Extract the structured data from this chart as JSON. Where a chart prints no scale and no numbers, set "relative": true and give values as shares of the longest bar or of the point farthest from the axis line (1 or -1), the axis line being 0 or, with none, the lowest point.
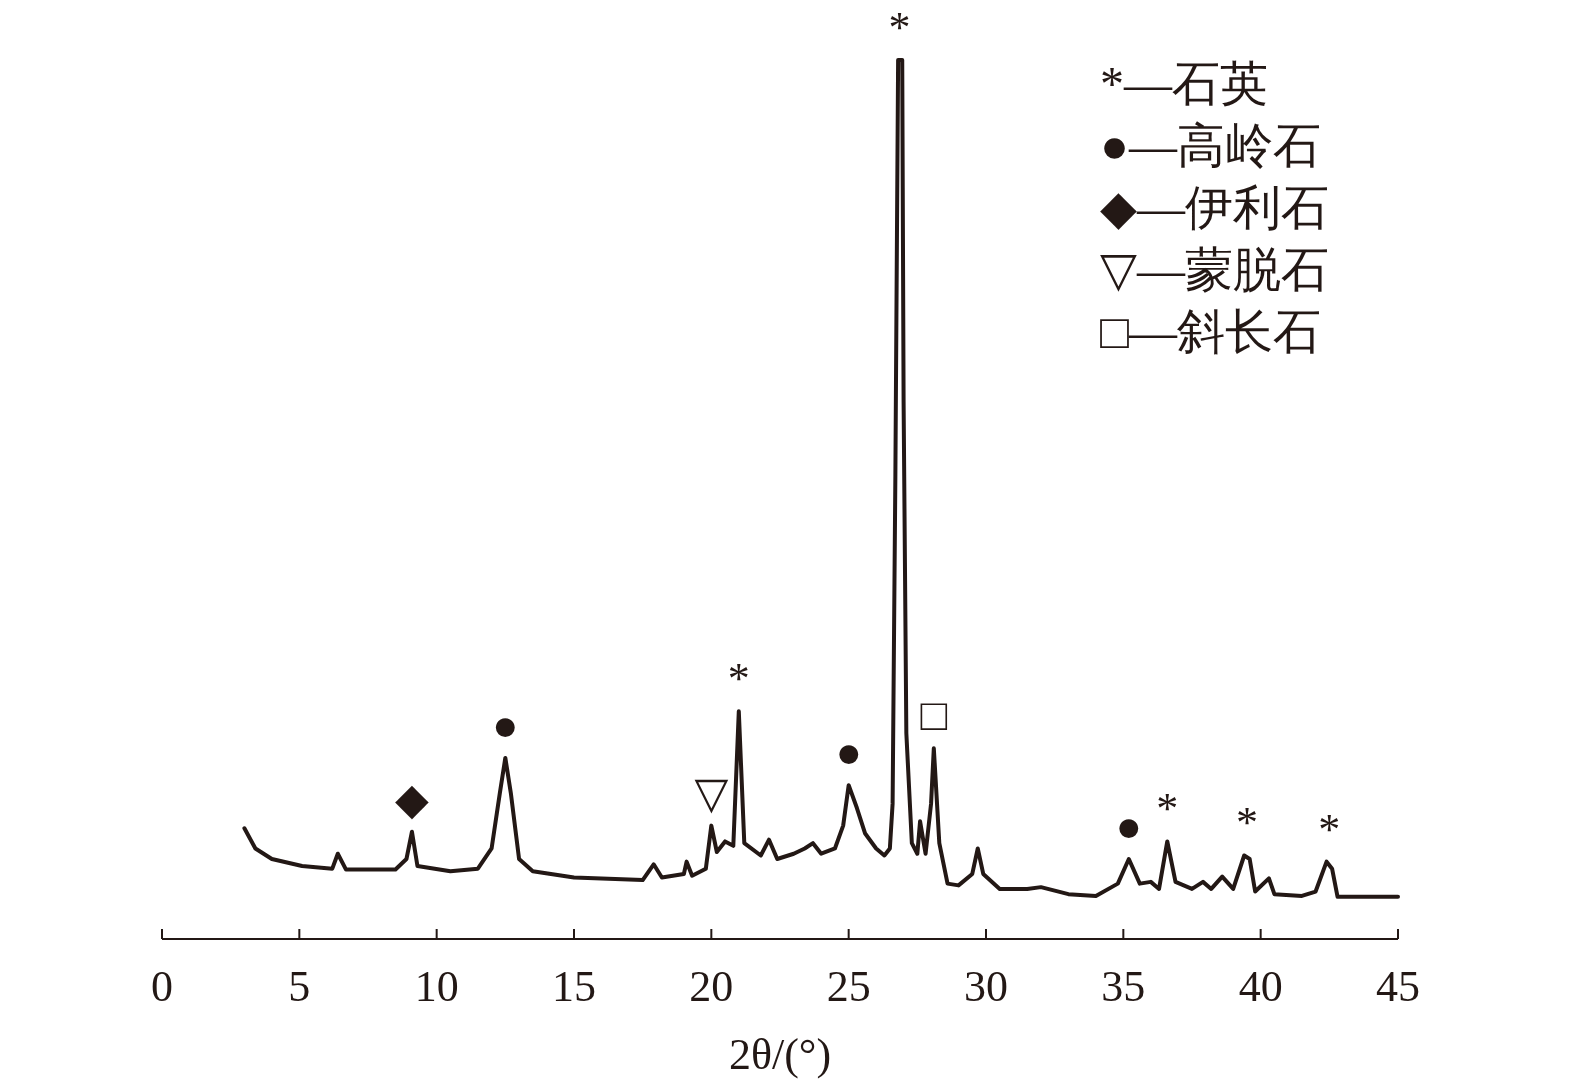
{
  "chart_data": {
    "type": "line",
    "relative": true,
    "xlabel": "2θ/(°)",
    "xlim": [
      0,
      45
    ],
    "xticks": [
      0,
      5,
      10,
      15,
      20,
      25,
      30,
      35,
      40,
      45
    ],
    "grid": false,
    "series": [
      {
        "color": "#231815",
        "x": [
          3.0,
          3.4,
          4.0,
          5.1,
          6.2,
          6.4,
          6.7,
          8.5,
          8.9,
          9.1,
          9.3,
          10.5,
          11.5,
          12.0,
          12.3,
          12.5,
          12.7,
          13.0,
          13.5,
          15.0,
          17.5,
          17.9,
          18.2,
          19.0,
          19.1,
          19.3,
          19.8,
          20.0,
          20.2,
          20.5,
          20.8,
          21.0,
          21.2,
          21.8,
          22.1,
          22.4,
          23.0,
          23.4,
          23.7,
          24.0,
          24.5,
          24.8,
          25.0,
          25.3,
          25.6,
          26.0,
          26.3,
          26.5,
          26.6,
          26.7,
          26.8,
          26.95,
          27.0,
          27.1,
          27.3,
          27.5,
          27.6,
          27.8,
          28.0,
          28.1,
          28.3,
          28.6,
          29.0,
          29.5,
          29.7,
          29.9,
          30.5,
          31.5,
          32.0,
          33.0,
          34.0,
          34.8,
          35.2,
          35.6,
          36.0,
          36.3,
          36.6,
          36.9,
          37.5,
          37.9,
          38.2,
          38.6,
          39.0,
          39.4,
          39.6,
          39.8,
          40.3,
          40.5,
          41.5,
          42.0,
          42.4,
          42.6,
          42.8,
          44.0,
          45.0
        ],
        "values": [
          0.126,
          0.103,
          0.091,
          0.083,
          0.08,
          0.097,
          0.079,
          0.079,
          0.091,
          0.122,
          0.083,
          0.077,
          0.08,
          0.103,
          0.166,
          0.206,
          0.166,
          0.091,
          0.077,
          0.07,
          0.067,
          0.085,
          0.07,
          0.074,
          0.088,
          0.072,
          0.08,
          0.129,
          0.099,
          0.111,
          0.106,
          0.259,
          0.109,
          0.095,
          0.113,
          0.091,
          0.097,
          0.103,
          0.109,
          0.097,
          0.103,
          0.129,
          0.175,
          0.149,
          0.12,
          0.103,
          0.095,
          0.103,
          0.154,
          0.526,
          1.0,
          1.0,
          0.611,
          0.234,
          0.109,
          0.097,
          0.134,
          0.097,
          0.154,
          0.217,
          0.109,
          0.063,
          0.061,
          0.074,
          0.103,
          0.074,
          0.057,
          0.057,
          0.059,
          0.051,
          0.049,
          0.063,
          0.091,
          0.063,
          0.065,
          0.057,
          0.111,
          0.065,
          0.057,
          0.065,
          0.057,
          0.071,
          0.057,
          0.095,
          0.091,
          0.054,
          0.069,
          0.051,
          0.049,
          0.054,
          0.088,
          0.08,
          0.048,
          0.048,
          0.048
        ]
      }
    ],
    "annotations": [
      {
        "text": "◆",
        "x": 9.1,
        "y": 0.122
      },
      {
        "text": "●",
        "x": 12.5,
        "y": 0.206
      },
      {
        "text": "▽",
        "x": 20.0,
        "y": 0.129
      },
      {
        "text": "*",
        "x": 21.0,
        "y": 0.259
      },
      {
        "text": "●",
        "x": 25.0,
        "y": 0.175
      },
      {
        "text": "*",
        "x": 26.85,
        "y": 1.0
      },
      {
        "text": "□",
        "x": 28.1,
        "y": 0.217
      },
      {
        "text": "●",
        "x": 35.2,
        "y": 0.091
      },
      {
        "text": "*",
        "x": 36.6,
        "y": 0.111
      },
      {
        "text": "*",
        "x": 39.5,
        "y": 0.095
      },
      {
        "text": "*",
        "x": 42.5,
        "y": 0.088
      },
      "*—石英",
      "●—高岭石",
      "◆—伊利石",
      "▽—蒙脱石",
      "□—斜长石"
    ]
  }
}
